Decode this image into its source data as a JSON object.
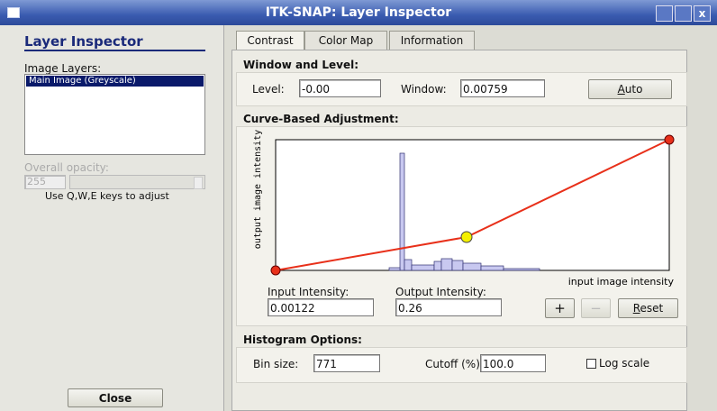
{
  "window": {
    "title": "ITK-SNAP: Layer Inspector"
  },
  "sidebar": {
    "heading": "Layer Inspector",
    "layers_label": "Image Layers:",
    "layers": [
      "Main Image (Greyscale)"
    ],
    "opacity_label": "Overall opacity:",
    "opacity_value": "255",
    "hint": "Use Q,W,E keys to adjust",
    "close": "Close"
  },
  "tabs": [
    "Contrast",
    "Color Map",
    "Information"
  ],
  "window_level": {
    "heading": "Window and Level:",
    "level_label": "Level:",
    "level_value": "-0.00",
    "window_label": "Window:",
    "window_value": "0.00759",
    "auto": "Auto"
  },
  "curve": {
    "heading": "Curve-Based Adjustment:",
    "y_axis_label": "output image intensity",
    "x_axis_label": "input image intensity",
    "input_label": "Input Intensity:",
    "input_value": "0.00122",
    "output_label": "Output Intensity:",
    "output_value": "0.26",
    "plus": "+",
    "minus": "−",
    "reset": "Reset"
  },
  "histogram": {
    "heading": "Histogram Options:",
    "bin_label": "Bin size:",
    "bin_value": "771",
    "cutoff_label": "Cutoff (%):",
    "cutoff_value": "100.0",
    "log_label": "Log scale"
  }
}
